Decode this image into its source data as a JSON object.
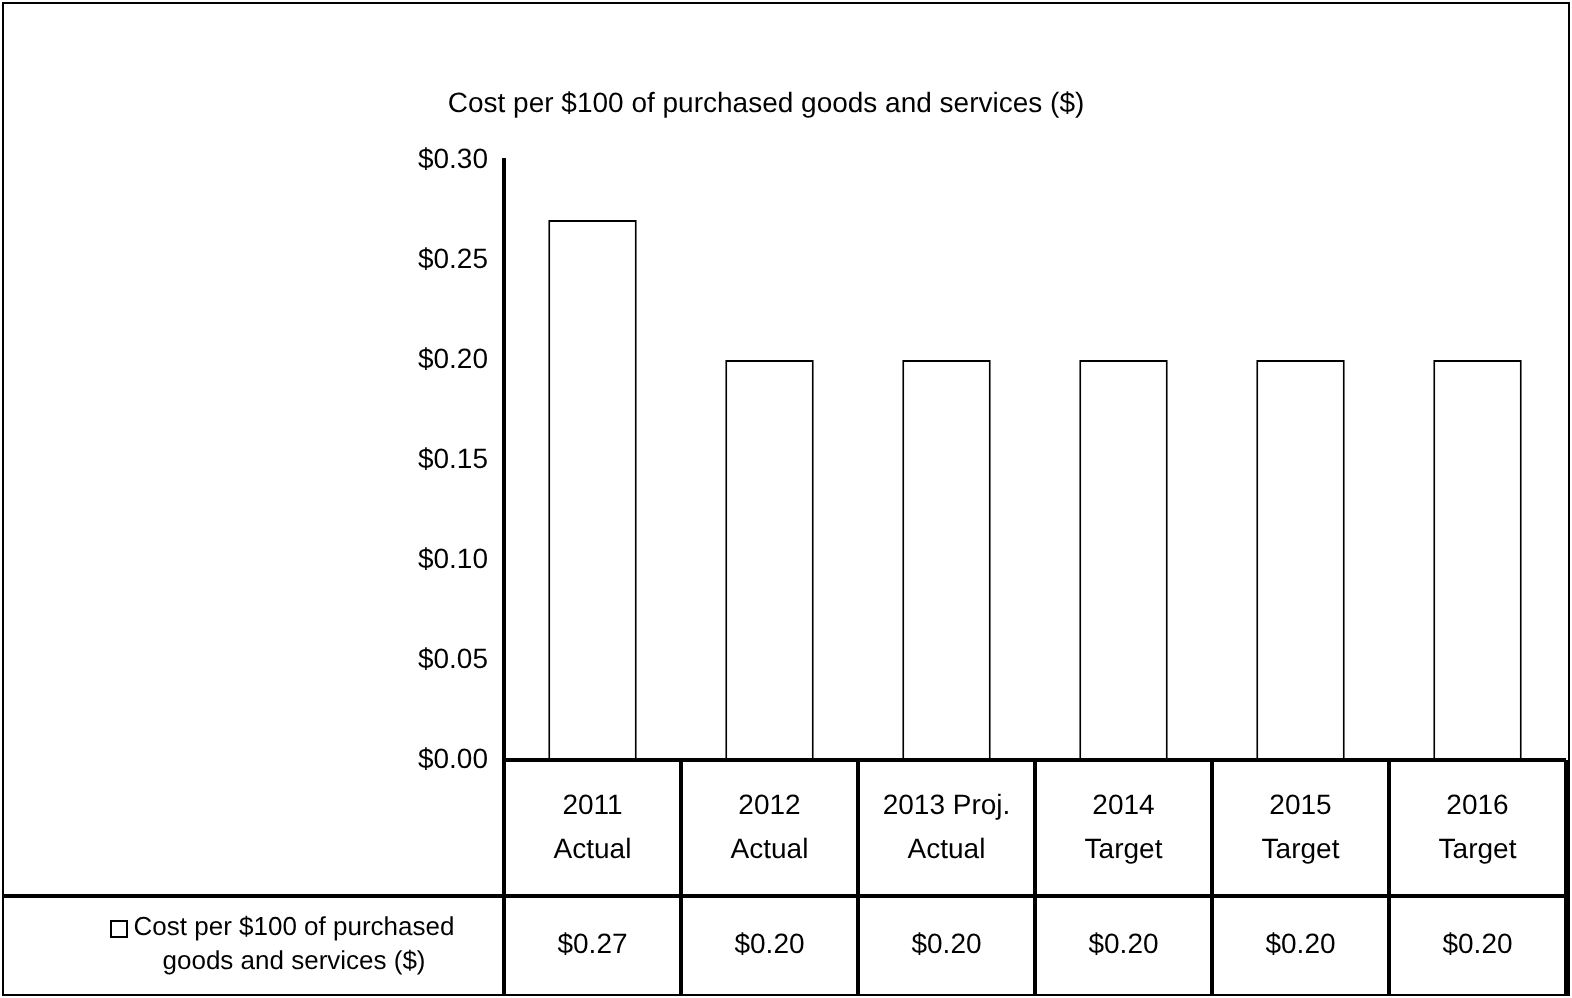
{
  "chart_data": {
    "type": "bar",
    "title": "Cost per $100 of purchased goods and services ($)",
    "categories": [
      "2011\nActual",
      "2012\nActual",
      "2013 Proj.\nActual",
      "2014\nTarget",
      "2015\nTarget",
      "2016\nTarget"
    ],
    "series": [
      {
        "name": "Cost per $100 of purchased goods and services ($)",
        "color": "#ffffff",
        "values": [
          0.27,
          0.2,
          0.2,
          0.2,
          0.2,
          0.2
        ],
        "value_labels": [
          "$0.27",
          "$0.20",
          "$0.20",
          "$0.20",
          "$0.20",
          "$0.20"
        ]
      }
    ],
    "ylim": [
      0,
      0.3
    ],
    "yticks": [
      {
        "value": 0,
        "label": "$0.00"
      },
      {
        "value": 0.05,
        "label": "$0.05"
      },
      {
        "value": 0.1,
        "label": "$0.10"
      },
      {
        "value": 0.15,
        "label": "$0.15"
      },
      {
        "value": 0.2,
        "label": "$0.20"
      },
      {
        "value": 0.25,
        "label": "$0.25"
      },
      {
        "value": 0.3,
        "label": "$0.30"
      }
    ],
    "grid": false
  }
}
